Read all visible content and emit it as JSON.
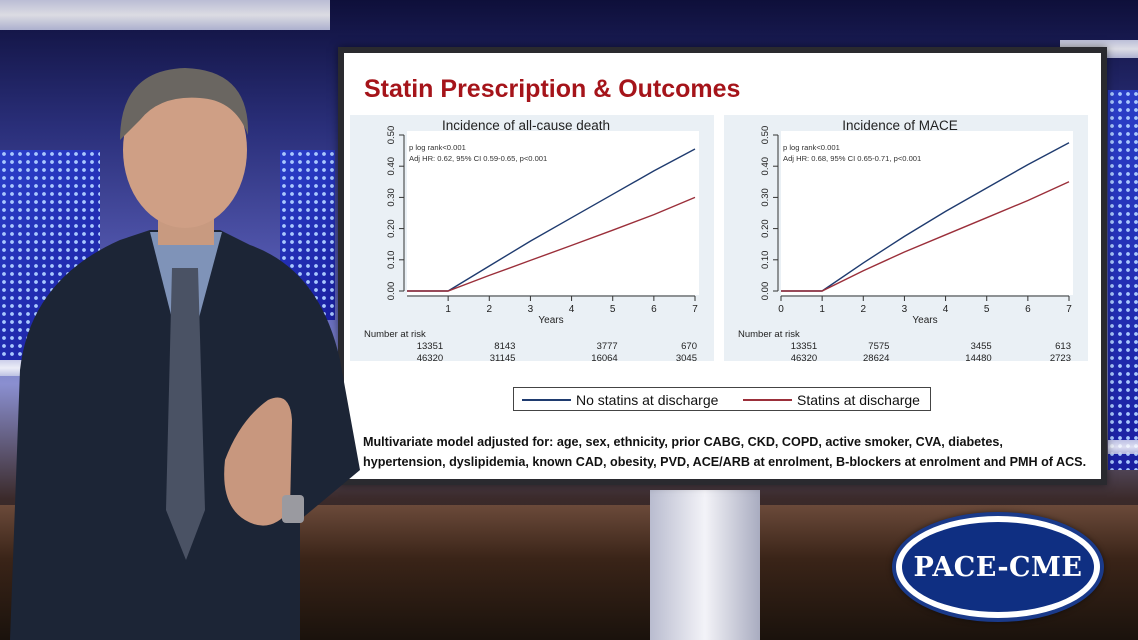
{
  "slide": {
    "title": "Statin Prescription & Outcomes",
    "legend": {
      "series_1": "No statins at discharge",
      "series_2": "Statins at discharge"
    },
    "footnote_line1": "Multivariate model adjusted for: age, sex, ethnicity, prior CABG, CKD, COPD, active smoker, CVA, diabetes,",
    "footnote_line2": "hypertension, dyslipidemia, known CAD, obesity, PVD, ACE/ARB at enrolment, B-blockers at enrolment and PMH of ACS."
  },
  "logo": {
    "text": "PACE-CME"
  },
  "colors": {
    "title_red": "#a5141a",
    "no_statins": "#1f3b6f",
    "statins": "#9b2f3a",
    "plot_bg": "#eaf0f5",
    "logo_blue": "#0f2f82"
  },
  "chart_data": [
    {
      "type": "line",
      "title": "Incidence of all-cause death",
      "xlabel": "Years",
      "ylabel": "",
      "xlim": [
        0,
        7
      ],
      "ylim": [
        0,
        0.5
      ],
      "x_ticks": [
        "1",
        "2",
        "3",
        "4",
        "5",
        "6",
        "7"
      ],
      "y_ticks": [
        "0.00",
        "0.10",
        "0.20",
        "0.30",
        "0.40",
        "0.50"
      ],
      "annotations": [
        "p log rank<0.001",
        "Adj HR: 0.62, 95% CI 0.59-0.65, p<0.001"
      ],
      "risk_table": {
        "label": "Number at risk",
        "rows": [
          [
            "13351",
            "8143",
            "3777",
            "670"
          ],
          [
            "46320",
            "31145",
            "16064",
            "3045"
          ]
        ]
      },
      "series": [
        {
          "name": "No statins at discharge",
          "x": [
            0,
            1,
            2,
            3,
            4,
            5,
            6,
            7
          ],
          "values": [
            0,
            0,
            0.08,
            0.16,
            0.235,
            0.31,
            0.385,
            0.455
          ]
        },
        {
          "name": "Statins at discharge",
          "x": [
            0,
            1,
            2,
            3,
            4,
            5,
            6,
            7
          ],
          "values": [
            0,
            0,
            0.05,
            0.098,
            0.146,
            0.195,
            0.245,
            0.3
          ]
        }
      ]
    },
    {
      "type": "line",
      "title": "Incidence of MACE",
      "xlabel": "Years",
      "ylabel": "",
      "xlim": [
        0,
        7
      ],
      "ylim": [
        0,
        0.5
      ],
      "x_ticks": [
        "0",
        "1",
        "2",
        "3",
        "4",
        "5",
        "6",
        "7"
      ],
      "y_ticks": [
        "0.00",
        "0.10",
        "0.20",
        "0.30",
        "0.40",
        "0.50"
      ],
      "annotations": [
        "p log rank<0.001",
        "Adj HR: 0.68, 95% CI 0.65-0.71, p<0.001"
      ],
      "risk_table": {
        "label": "Number at risk",
        "rows": [
          [
            "13351",
            "7575",
            "3455",
            "613"
          ],
          [
            "46320",
            "28624",
            "14480",
            "2723"
          ]
        ]
      },
      "series": [
        {
          "name": "No statins at discharge",
          "x": [
            0,
            1,
            2,
            3,
            4,
            5,
            6,
            7
          ],
          "values": [
            0,
            0,
            0.09,
            0.175,
            0.255,
            0.33,
            0.405,
            0.475
          ]
        },
        {
          "name": "Statins at discharge",
          "x": [
            0,
            1,
            2,
            3,
            4,
            5,
            6,
            7
          ],
          "values": [
            0,
            0,
            0.065,
            0.125,
            0.18,
            0.235,
            0.29,
            0.35
          ]
        }
      ]
    }
  ]
}
